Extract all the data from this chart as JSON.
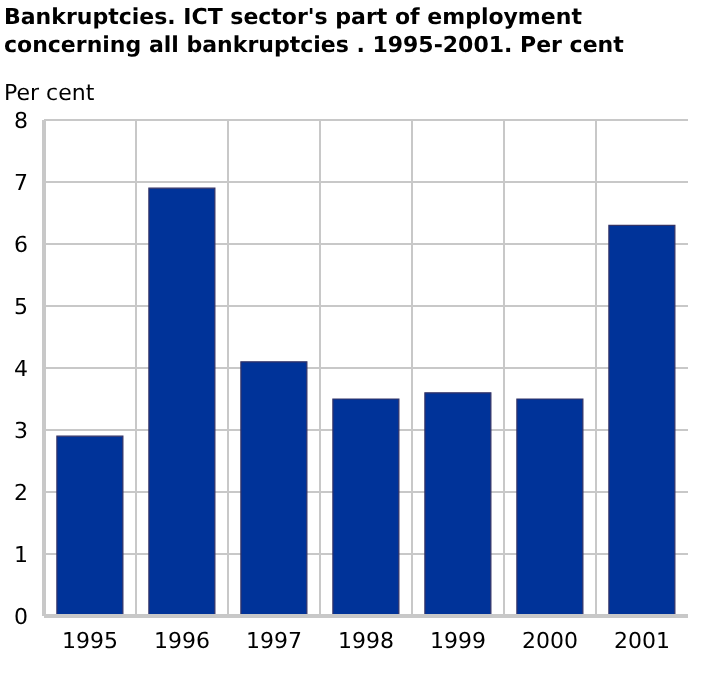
{
  "chart_data": {
    "type": "bar",
    "title": "Bankruptcies. ICT sector's part of employment concerning all bankruptcies . 1995-2001. Per cent",
    "ylabel": "Per cent",
    "categories": [
      "1995",
      "1996",
      "1997",
      "1998",
      "1999",
      "2000",
      "2001"
    ],
    "values": [
      2.9,
      6.9,
      4.1,
      3.5,
      3.6,
      3.5,
      6.3
    ],
    "color": "#003399",
    "ylim": [
      0,
      8
    ],
    "yticks": [
      0,
      1,
      2,
      3,
      4,
      5,
      6,
      7,
      8
    ],
    "grid": true
  }
}
